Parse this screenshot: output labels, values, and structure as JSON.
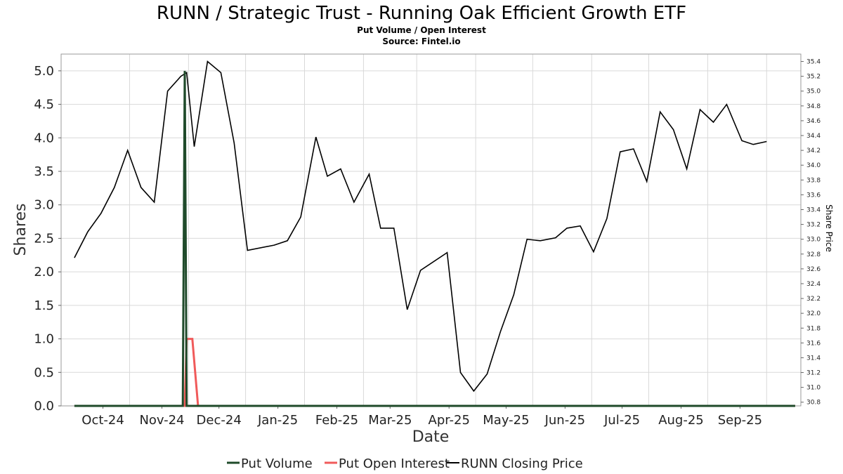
{
  "chart_data": {
    "type": "line",
    "title": "RUNN / Strategic Trust - Running Oak Efficient Growth ETF",
    "subtitle_lines": [
      "Put Volume / Open Interest",
      "Source: Fintel.io"
    ],
    "xlabel": "Date",
    "ylabel": "Shares",
    "y2label": "Share Price",
    "xlim": [
      "2024-09-09",
      "2025-10-03"
    ],
    "ylim": [
      0,
      5.25
    ],
    "y2lim": [
      30.75,
      35.5
    ],
    "grid": true,
    "legend_position": "bottom",
    "x_ticks": [
      {
        "date": "2024-10-01",
        "label": "Oct-24"
      },
      {
        "date": "2024-11-01",
        "label": "Nov-24"
      },
      {
        "date": "2024-12-01",
        "label": "Dec-24"
      },
      {
        "date": "2025-01-01",
        "label": "Jan-25"
      },
      {
        "date": "2025-02-01",
        "label": "Feb-25"
      },
      {
        "date": "2025-03-01",
        "label": "Mar-25"
      },
      {
        "date": "2025-04-01",
        "label": "Apr-25"
      },
      {
        "date": "2025-05-01",
        "label": "May-25"
      },
      {
        "date": "2025-06-01",
        "label": "Jun-25"
      },
      {
        "date": "2025-07-01",
        "label": "Jul-25"
      },
      {
        "date": "2025-08-01",
        "label": "Aug-25"
      },
      {
        "date": "2025-09-01",
        "label": "Sep-25"
      }
    ],
    "y_ticks": [
      "0.0",
      "0.5",
      "1.0",
      "1.5",
      "2.0",
      "2.5",
      "3.0",
      "3.5",
      "4.0",
      "4.5",
      "5.0"
    ],
    "y2_ticks": [
      "30.8",
      "31.0",
      "31.2",
      "31.4",
      "31.6",
      "31.8",
      "32.0",
      "32.2",
      "32.4",
      "32.6",
      "32.8",
      "33.0",
      "33.2",
      "33.4",
      "33.6",
      "33.8",
      "34.0",
      "34.2",
      "34.4",
      "34.6",
      "34.8",
      "35.0",
      "35.2",
      "35.4"
    ],
    "series": [
      {
        "name": "Put Volume",
        "axis": "left",
        "color": "#1f4a2a",
        "points": [
          [
            "2024-09-16",
            0
          ],
          [
            "2024-11-12",
            0
          ],
          [
            "2024-11-13",
            5.0
          ],
          [
            "2024-11-14",
            0
          ],
          [
            "2025-09-30",
            0
          ]
        ]
      },
      {
        "name": "Put Open Interest",
        "axis": "left",
        "color": "#f05a5a",
        "points": [
          [
            "2024-09-16",
            0
          ],
          [
            "2024-11-13",
            0
          ],
          [
            "2024-11-14",
            1.0
          ],
          [
            "2024-11-17",
            1.0
          ],
          [
            "2024-11-20",
            0
          ],
          [
            "2025-09-30",
            0
          ]
        ]
      },
      {
        "name": "RUNN Closing Price",
        "axis": "right",
        "color": "#000000",
        "points": [
          [
            "2024-09-16",
            32.75
          ],
          [
            "2024-09-23",
            33.1
          ],
          [
            "2024-09-30",
            33.35
          ],
          [
            "2024-10-07",
            33.7
          ],
          [
            "2024-10-14",
            34.2
          ],
          [
            "2024-10-21",
            33.7
          ],
          [
            "2024-10-28",
            33.5
          ],
          [
            "2024-11-04",
            35.0
          ],
          [
            "2024-11-11",
            35.2
          ],
          [
            "2024-11-14",
            35.25
          ],
          [
            "2024-11-18",
            34.25
          ],
          [
            "2024-11-25",
            35.4
          ],
          [
            "2024-12-02",
            35.25
          ],
          [
            "2024-12-09",
            34.3
          ],
          [
            "2024-12-16",
            32.85
          ],
          [
            "2024-12-30",
            32.92
          ],
          [
            "2025-01-06",
            32.98
          ],
          [
            "2025-01-13",
            33.3
          ],
          [
            "2025-01-21",
            34.38
          ],
          [
            "2025-01-27",
            33.85
          ],
          [
            "2025-02-03",
            33.95
          ],
          [
            "2025-02-10",
            33.5
          ],
          [
            "2025-02-18",
            33.88
          ],
          [
            "2025-02-24",
            33.15
          ],
          [
            "2025-03-03",
            33.15
          ],
          [
            "2025-03-10",
            32.05
          ],
          [
            "2025-03-17",
            32.58
          ],
          [
            "2025-03-31",
            32.82
          ],
          [
            "2025-04-07",
            31.2
          ],
          [
            "2025-04-14",
            30.95
          ],
          [
            "2025-04-21",
            31.18
          ],
          [
            "2025-04-28",
            31.75
          ],
          [
            "2025-05-05",
            32.25
          ],
          [
            "2025-05-12",
            33.0
          ],
          [
            "2025-05-19",
            32.98
          ],
          [
            "2025-05-27",
            33.02
          ],
          [
            "2025-06-02",
            33.15
          ],
          [
            "2025-06-09",
            33.18
          ],
          [
            "2025-06-16",
            32.83
          ],
          [
            "2025-06-23",
            33.28
          ],
          [
            "2025-06-30",
            34.18
          ],
          [
            "2025-07-07",
            34.22
          ],
          [
            "2025-07-14",
            33.78
          ],
          [
            "2025-07-21",
            34.72
          ],
          [
            "2025-07-28",
            34.48
          ],
          [
            "2025-08-04",
            33.95
          ],
          [
            "2025-08-11",
            34.75
          ],
          [
            "2025-08-18",
            34.58
          ],
          [
            "2025-08-25",
            34.82
          ],
          [
            "2025-09-02",
            34.33
          ],
          [
            "2025-09-08",
            34.28
          ],
          [
            "2025-09-15",
            34.32
          ]
        ]
      }
    ]
  }
}
